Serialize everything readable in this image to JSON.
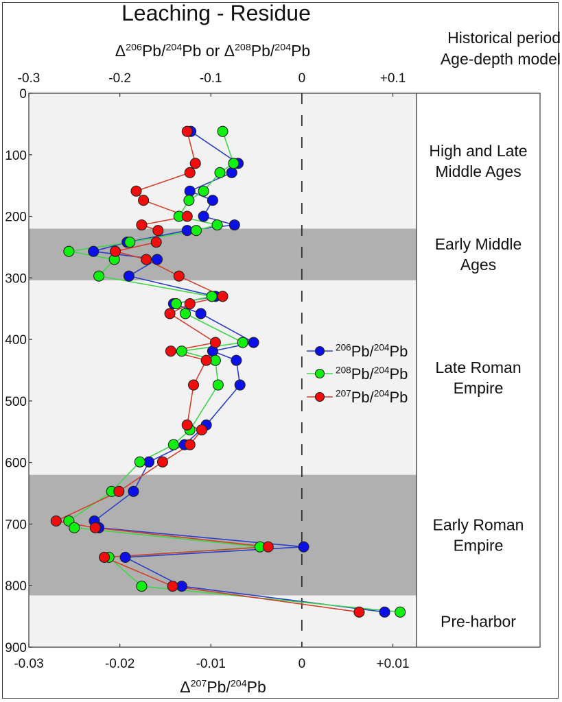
{
  "chart_data": {
    "type": "scatter",
    "title": "Leaching - Residue",
    "top_xlabel": {
      "delta": "Δ",
      "parts": [
        [
          "206",
          "Pb/"
        ],
        [
          "204",
          "Pb or Δ"
        ],
        [
          "208",
          "Pb/"
        ],
        [
          "204",
          "Pb"
        ]
      ]
    },
    "top_xlabel_text": "Δ206Pb/204Pb or Δ208Pb/204Pb",
    "bottom_xlabel_text": "Δ207Pb/204Pb",
    "right_header": [
      "Historical period",
      "Age-depth model"
    ],
    "top_xlim": [
      -0.3,
      0.126
    ],
    "bottom_xlim": [
      -0.03,
      0.0126
    ],
    "ylim": [
      0,
      900
    ],
    "y_inverted": true,
    "top_ticks": [
      {
        "v": -0.3,
        "label": "-0.3"
      },
      {
        "v": -0.2,
        "label": "-0.2"
      },
      {
        "v": -0.1,
        "label": "-0.1"
      },
      {
        "v": 0,
        "label": "0"
      },
      {
        "v": 0.1,
        "label": "+0.1"
      }
    ],
    "bottom_ticks": [
      {
        "v": -0.03,
        "label": "-0.03"
      },
      {
        "v": -0.02,
        "label": "-0.02"
      },
      {
        "v": -0.01,
        "label": "-0.01"
      },
      {
        "v": 0,
        "label": "0"
      },
      {
        "v": 0.01,
        "label": "+0.01"
      }
    ],
    "y_ticks": [
      0,
      100,
      200,
      300,
      400,
      500,
      600,
      700,
      800,
      900
    ],
    "reference_line": {
      "axis": "x",
      "value": 0,
      "style": "dashed"
    },
    "bands": [
      {
        "from": 0,
        "to": 220,
        "shade": "light"
      },
      {
        "from": 220,
        "to": 304,
        "shade": "dark"
      },
      {
        "from": 304,
        "to": 620,
        "shade": "light"
      },
      {
        "from": 620,
        "to": 816,
        "shade": "dark"
      },
      {
        "from": 816,
        "to": 900,
        "shade": "light"
      }
    ],
    "band_colors": {
      "light": "#f2f2f2",
      "dark": "#b0b0b0"
    },
    "periods": [
      {
        "lines": [
          "High and Late",
          "Middle Ages"
        ],
        "center": 110
      },
      {
        "lines": [
          "Early Middle",
          "Ages"
        ],
        "center": 262
      },
      {
        "lines": [
          "Late Roman",
          "Empire"
        ],
        "center": 462
      },
      {
        "lines": [
          "Early Roman",
          "Empire"
        ],
        "center": 718
      },
      {
        "lines": [
          "Pre-harbor"
        ],
        "center": 858
      }
    ],
    "legend_position": "center-right",
    "series": [
      {
        "name": "206Pb/204Pb",
        "sup1": "206",
        "sup2": "204",
        "axis": "top",
        "line_color": "#2b3fc6",
        "marker_color": "#0a10e6",
        "depth": [
          62,
          114,
          129,
          159,
          174,
          200,
          214,
          223,
          242,
          257,
          270,
          297,
          330,
          342,
          358,
          405,
          419,
          434,
          474,
          539,
          571,
          599,
          647,
          695,
          706,
          737,
          754,
          801,
          843
        ],
        "values": [
          -0.122,
          -0.07,
          -0.077,
          -0.123,
          -0.098,
          -0.108,
          -0.074,
          -0.126,
          -0.192,
          -0.229,
          -0.159,
          -0.19,
          -0.095,
          -0.141,
          -0.111,
          -0.053,
          -0.098,
          -0.072,
          -0.068,
          -0.105,
          -0.129,
          -0.168,
          -0.185,
          -0.228,
          -0.223,
          0.002,
          -0.194,
          -0.132,
          0.091
        ]
      },
      {
        "name": "208Pb/204Pb",
        "sup1": "208",
        "sup2": "204",
        "axis": "top",
        "line_color": "#3fd64a",
        "marker_color": "#12f012",
        "depth": [
          62,
          114,
          129,
          159,
          174,
          200,
          214,
          223,
          242,
          257,
          270,
          297,
          330,
          342,
          358,
          405,
          419,
          434,
          474,
          547,
          571,
          599,
          647,
          695,
          706,
          737,
          754,
          801,
          843
        ],
        "values": [
          -0.087,
          -0.075,
          -0.09,
          -0.108,
          -0.124,
          -0.135,
          -0.093,
          -0.116,
          -0.189,
          -0.256,
          -0.206,
          -0.223,
          -0.099,
          -0.138,
          -0.128,
          -0.065,
          -0.132,
          -0.095,
          -0.092,
          -0.123,
          -0.141,
          -0.178,
          -0.209,
          -0.256,
          -0.25,
          -0.046,
          -0.212,
          -0.176,
          0.108
        ]
      },
      {
        "name": "207Pb/204Pb",
        "sup1": "207",
        "sup2": "204",
        "axis": "bottom",
        "line_color": "#d2402c",
        "marker_color": "#f00d0d",
        "depth": [
          62,
          114,
          129,
          159,
          174,
          200,
          214,
          223,
          242,
          257,
          270,
          297,
          330,
          342,
          358,
          405,
          419,
          434,
          474,
          539,
          547,
          571,
          599,
          647,
          695,
          706,
          737,
          754,
          801,
          843
        ],
        "values": [
          -0.0126,
          -0.0117,
          -0.0123,
          -0.0182,
          -0.0174,
          -0.0126,
          -0.0176,
          -0.0158,
          -0.016,
          -0.0205,
          -0.0171,
          -0.0135,
          -0.0087,
          -0.0123,
          -0.0145,
          -0.0095,
          -0.0144,
          -0.0105,
          -0.0119,
          -0.0126,
          -0.011,
          -0.0123,
          -0.0153,
          -0.0201,
          -0.027,
          -0.0227,
          -0.0037,
          -0.0217,
          -0.0142,
          0.0063
        ]
      }
    ]
  }
}
